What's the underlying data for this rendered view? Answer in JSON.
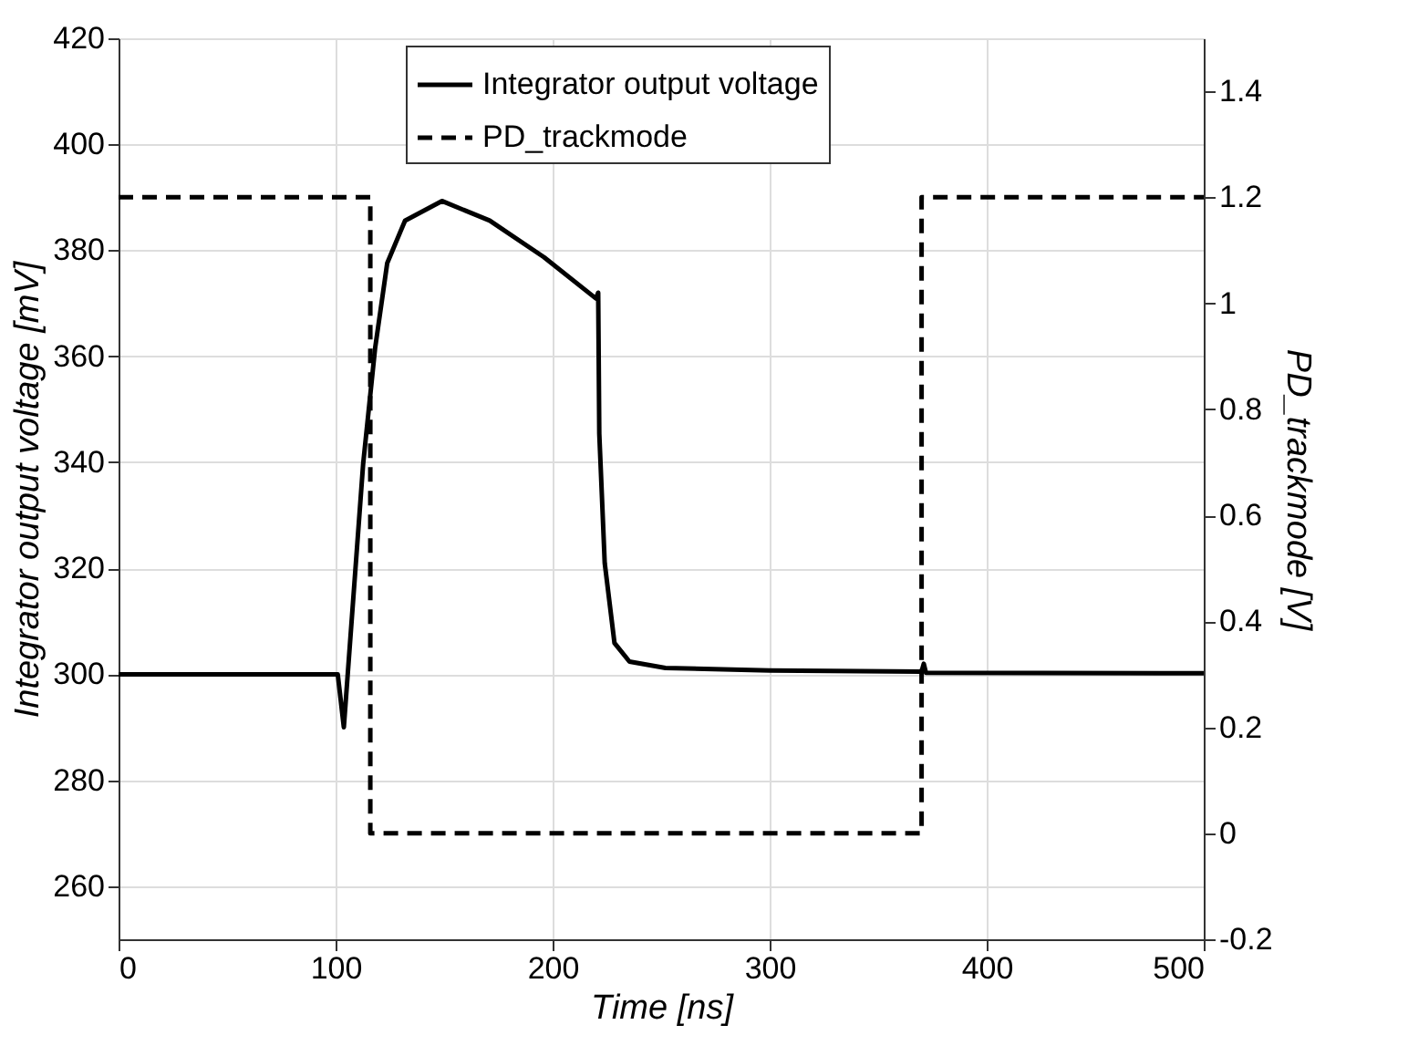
{
  "chart_data": {
    "type": "line",
    "xlabel": "Time   [ns]",
    "ylabel": "Integrator output voltage   [mV]",
    "y2label": "PD_trackmode   [V]",
    "xlim": [
      0,
      500
    ],
    "xticks": [
      0,
      100,
      200,
      300,
      400,
      500
    ],
    "ylim": [
      250,
      420
    ],
    "yticks": [
      260,
      280,
      300,
      320,
      340,
      360,
      380,
      400,
      420
    ],
    "y2lim": [
      -0.2,
      1.5
    ],
    "y2ticks": [
      -0.2,
      0,
      0.2,
      0.4,
      0.6,
      0.8,
      1,
      1.2,
      1.4
    ],
    "grid": true,
    "legend": "top",
    "series": [
      {
        "name": "Integrator output voltage",
        "color": "#000000",
        "line_style": "solid",
        "x": [
          0,
          101,
          103.8,
          112.7,
          118.2,
          123.8,
          132,
          149,
          171,
          196,
          220,
          221,
          221.5,
          224,
          228.5,
          235.4,
          252,
          300,
          370,
          371,
          372,
          500
        ],
        "values": [
          300,
          300,
          290,
          339.7,
          361.5,
          377.6,
          385.6,
          389.3,
          385.6,
          378.7,
          370.9,
          372,
          345.4,
          321,
          305.9,
          302.4,
          301.2,
          300.7,
          300.5,
          302,
          300.3,
          300.2
        ]
      },
      {
        "name": "PD_trackmode",
        "color": "#000000",
        "line_style": "dashed",
        "axis": "y2",
        "x": [
          0,
          116,
          116,
          370,
          370,
          500
        ],
        "values": [
          1.2,
          1.2,
          0,
          0,
          1.2,
          1.2
        ]
      }
    ]
  }
}
